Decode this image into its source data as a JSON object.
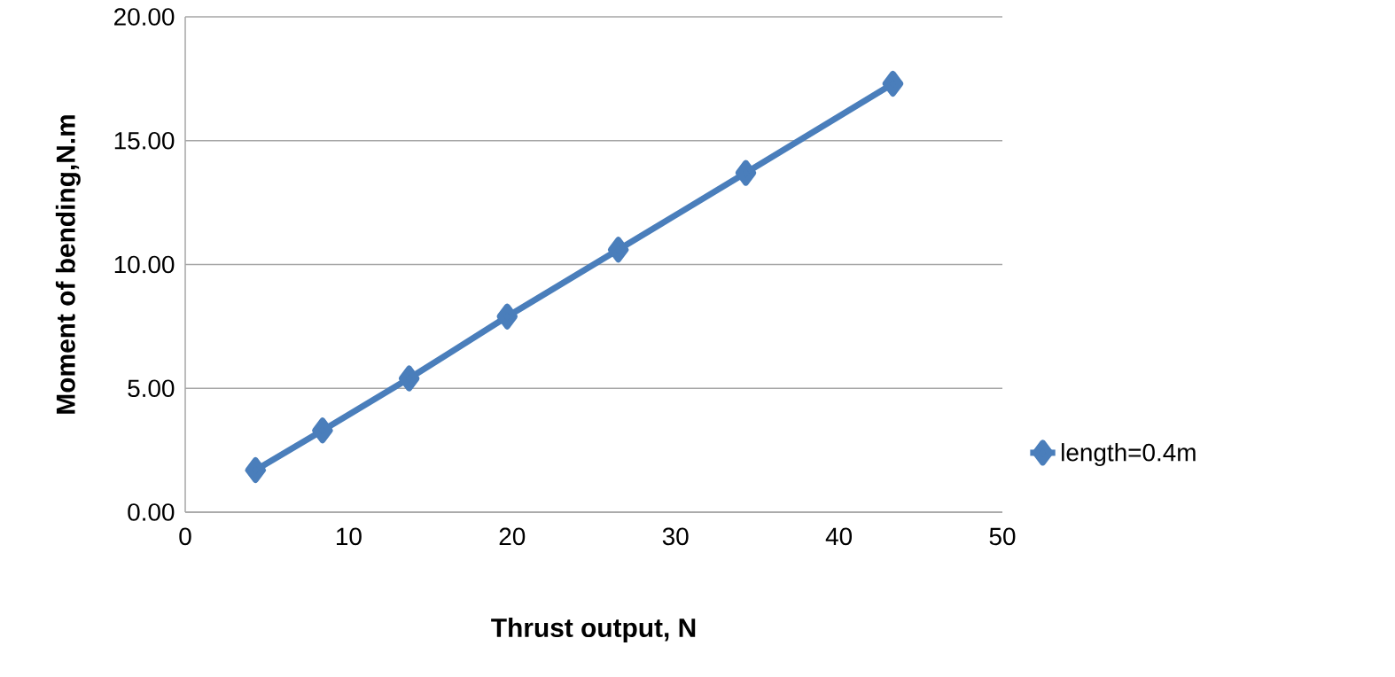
{
  "chart_data": {
    "type": "line",
    "xlabel": "Thrust output, N",
    "ylabel": "Moment of bending,N.m",
    "x": [
      4.3,
      8.4,
      13.7,
      19.7,
      26.5,
      34.3,
      43.3
    ],
    "series": [
      {
        "name": "length=0.4m",
        "color": "#4a7ebb",
        "values": [
          1.7,
          3.3,
          5.4,
          7.9,
          10.6,
          13.7,
          17.3
        ]
      }
    ],
    "xlim": [
      0,
      50
    ],
    "xticks": [
      0,
      10,
      20,
      30,
      40,
      50
    ],
    "ylim": [
      0,
      20
    ],
    "yticks": [
      {
        "value": 0,
        "label": "0.00"
      },
      {
        "value": 5,
        "label": "5.00"
      },
      {
        "value": 10,
        "label": "10.00"
      },
      {
        "value": 15,
        "label": "15.00"
      },
      {
        "value": 20,
        "label": "20.00"
      }
    ],
    "grid": "y",
    "legend": "right",
    "marker": "diamond",
    "line_style": "solid"
  }
}
